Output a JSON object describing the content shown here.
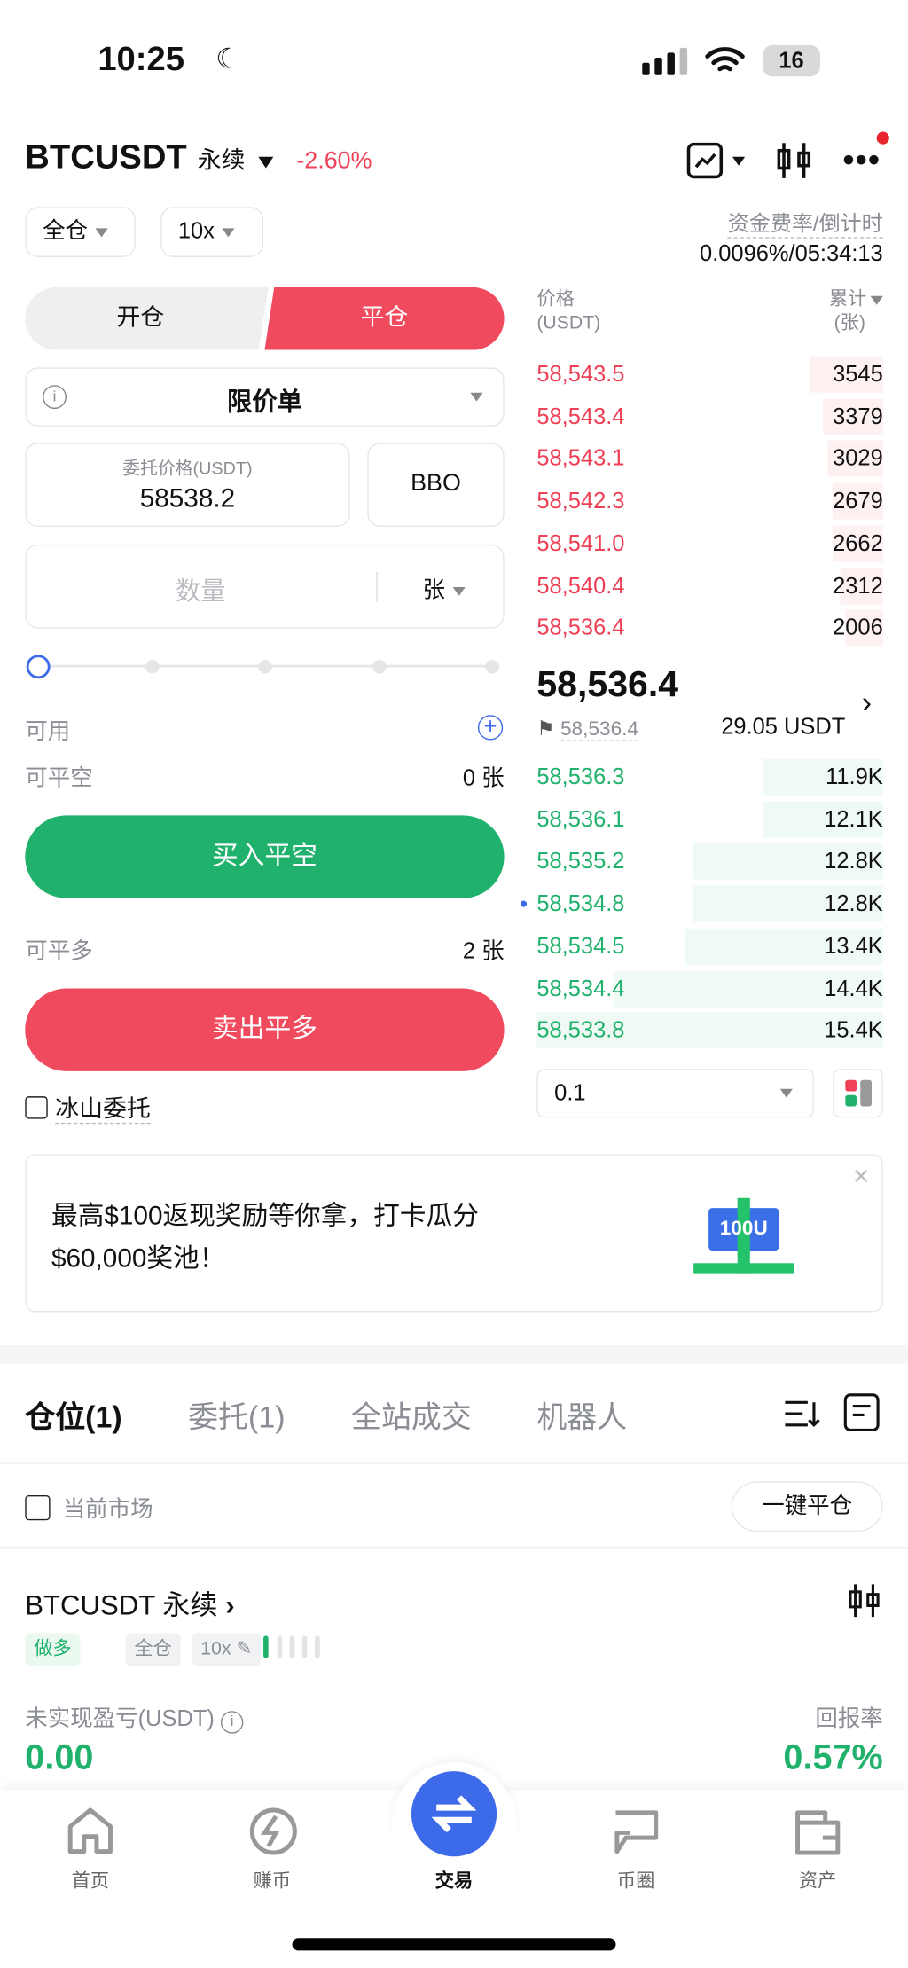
{
  "status": {
    "time": "10:25",
    "battery": "16"
  },
  "header": {
    "symbol": "BTCUSDT",
    "type": "永续",
    "change": "-2.60%"
  },
  "controls": {
    "margin_mode": "全仓",
    "leverage": "10x",
    "funding_label": "资金费率/倒计时",
    "funding_value": "0.0096%/05:34:13"
  },
  "order": {
    "tab_open": "开仓",
    "tab_close": "平仓",
    "order_type": "限价单",
    "price_label": "委托价格(USDT)",
    "price_value": "58538.2",
    "bbo": "BBO",
    "qty_placeholder": "数量",
    "qty_unit": "张",
    "slider_percent": 0,
    "available_label": "可用",
    "available_value": "29.05 USDT",
    "close_short_label": "可平空",
    "close_short_value": "0 张",
    "buy_close": "买入平空",
    "close_long_label": "可平多",
    "close_long_value": "2 张",
    "sell_close": "卖出平多",
    "iceberg": "冰山委托"
  },
  "orderbook": {
    "price_header": "价格",
    "price_unit": "(USDT)",
    "total_header": "累计",
    "total_unit": "(张)",
    "asks": [
      {
        "p": "58,543.5",
        "q": "3545"
      },
      {
        "p": "58,543.4",
        "q": "3379"
      },
      {
        "p": "58,543.1",
        "q": "3029"
      },
      {
        "p": "58,542.3",
        "q": "2679"
      },
      {
        "p": "58,541.0",
        "q": "2662"
      },
      {
        "p": "58,540.4",
        "q": "2312"
      },
      {
        "p": "58,536.4",
        "q": "2006"
      }
    ],
    "last_price": "58,536.4",
    "mark_price": "58,536.4",
    "bids": [
      {
        "p": "58,536.3",
        "q": "11.9K"
      },
      {
        "p": "58,536.1",
        "q": "12.1K"
      },
      {
        "p": "58,535.2",
        "q": "12.8K"
      },
      {
        "p": "58,534.8",
        "q": "12.8K"
      },
      {
        "p": "58,534.5",
        "q": "13.4K"
      },
      {
        "p": "58,534.4",
        "q": "14.4K"
      },
      {
        "p": "58,533.8",
        "q": "15.4K"
      }
    ],
    "precision": "0.1"
  },
  "banner": {
    "line1": "最高$100返现奖励等你拿，打卡瓜分",
    "line2": "$60,000奖池！",
    "gift_label": "100U"
  },
  "bottom_tabs": [
    "仓位(1)",
    "委托(1)",
    "全站成交",
    "机器人"
  ],
  "filter": {
    "current_market": "当前市场",
    "close_all": "一键平仓"
  },
  "position": {
    "title": "BTCUSDT 永续",
    "side": "做多",
    "mode": "全仓",
    "leverage": "10x",
    "pnl_label": "未实现盈亏(USDT)",
    "pnl_value": "0.00",
    "roe_label": "回报率",
    "roe_value": "0.57%"
  },
  "nav": [
    {
      "label": "首页",
      "icon": "home-icon"
    },
    {
      "label": "赚币",
      "icon": "earn-icon"
    },
    {
      "label": "交易",
      "icon": "trade-icon"
    },
    {
      "label": "币圈",
      "icon": "chat-icon"
    },
    {
      "label": "资产",
      "icon": "wallet-icon"
    }
  ],
  "colors": {
    "red": "#ee4056",
    "green": "#20b26c",
    "blue": "#3d6ae8"
  }
}
